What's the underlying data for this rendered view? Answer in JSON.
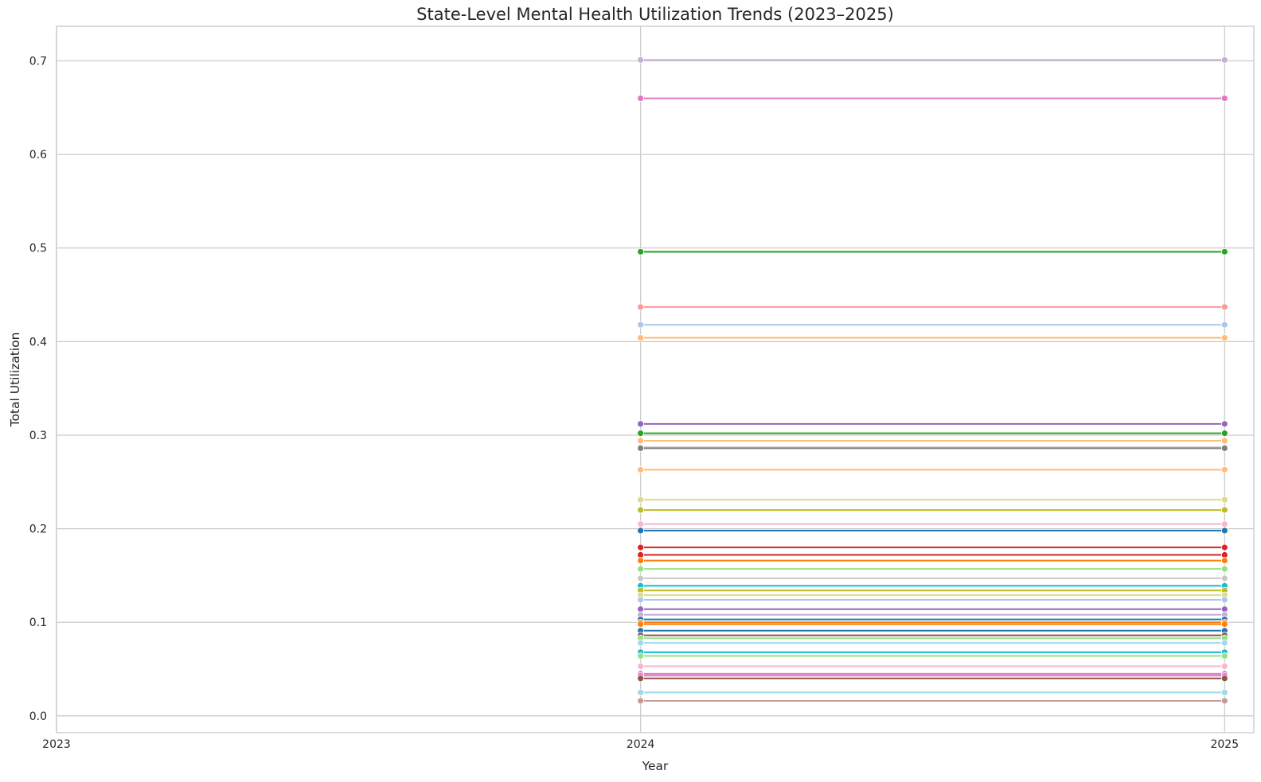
{
  "chart_data": {
    "type": "line",
    "title": "State-Level Mental Health Utilization Trends (2023–2025)",
    "xlabel": "Year",
    "ylabel": "Total Utilization",
    "x_ticks": [
      "2023",
      "2024",
      "2025"
    ],
    "y_ticks": [
      "0.0",
      "0.1",
      "0.2",
      "0.3",
      "0.4",
      "0.5",
      "0.6",
      "0.7"
    ],
    "xlim": [
      2023,
      2025.05
    ],
    "ylim": [
      -0.018,
      0.737
    ],
    "grid": true,
    "legend": "none",
    "x": [
      2024,
      2025
    ],
    "series": [
      {
        "color": "#c5b0d5",
        "values": [
          0.701,
          0.701
        ]
      },
      {
        "color": "#e377c2",
        "values": [
          0.66,
          0.66
        ]
      },
      {
        "color": "#2ca02c",
        "values": [
          0.496,
          0.496
        ]
      },
      {
        "color": "#ff9896",
        "values": [
          0.437,
          0.437
        ]
      },
      {
        "color": "#aec7e8",
        "values": [
          0.418,
          0.418
        ]
      },
      {
        "color": "#ffbb78",
        "values": [
          0.404,
          0.404
        ]
      },
      {
        "color": "#9467bd",
        "values": [
          0.312,
          0.312
        ]
      },
      {
        "color": "#2ca02c",
        "values": [
          0.302,
          0.302
        ]
      },
      {
        "color": "#ffbb78",
        "values": [
          0.294,
          0.294
        ]
      },
      {
        "color": "#c7c7c7",
        "values": [
          0.287,
          0.287
        ]
      },
      {
        "color": "#7f7f7f",
        "values": [
          0.286,
          0.286
        ]
      },
      {
        "color": "#ffbb78",
        "values": [
          0.263,
          0.263
        ]
      },
      {
        "color": "#dbdb8d",
        "values": [
          0.231,
          0.231
        ]
      },
      {
        "color": "#bcbd22",
        "values": [
          0.22,
          0.22
        ]
      },
      {
        "color": "#f7b6d2",
        "values": [
          0.205,
          0.205
        ]
      },
      {
        "color": "#1f77b4",
        "values": [
          0.198,
          0.198
        ]
      },
      {
        "color": "#d62728",
        "values": [
          0.18,
          0.18
        ]
      },
      {
        "color": "#d62728",
        "values": [
          0.172,
          0.172
        ]
      },
      {
        "color": "#ff7f0e",
        "values": [
          0.166,
          0.166
        ]
      },
      {
        "color": "#98df8a",
        "values": [
          0.157,
          0.157
        ]
      },
      {
        "color": "#c7c7c7",
        "values": [
          0.147,
          0.147
        ]
      },
      {
        "color": "#17becf",
        "values": [
          0.139,
          0.139
        ]
      },
      {
        "color": "#bcbd22",
        "values": [
          0.134,
          0.134
        ]
      },
      {
        "color": "#dbdb8d",
        "values": [
          0.129,
          0.129
        ]
      },
      {
        "color": "#aec7e8",
        "values": [
          0.124,
          0.124
        ]
      },
      {
        "color": "#9467bd",
        "values": [
          0.114,
          0.114
        ]
      },
      {
        "color": "#c5b0d5",
        "values": [
          0.108,
          0.108
        ]
      },
      {
        "color": "#1f77b4",
        "values": [
          0.103,
          0.103
        ]
      },
      {
        "color": "#ff7f0e",
        "values": [
          0.1,
          0.1
        ]
      },
      {
        "color": "#ff7f0e",
        "values": [
          0.098,
          0.098
        ]
      },
      {
        "color": "#1f77b4",
        "values": [
          0.091,
          0.091
        ]
      },
      {
        "color": "#8c564b",
        "values": [
          0.086,
          0.086
        ]
      },
      {
        "color": "#98df8a",
        "values": [
          0.083,
          0.083
        ]
      },
      {
        "color": "#9edae5",
        "values": [
          0.078,
          0.078
        ]
      },
      {
        "color": "#17becf",
        "values": [
          0.068,
          0.068
        ]
      },
      {
        "color": "#98df8a",
        "values": [
          0.064,
          0.064
        ]
      },
      {
        "color": "#f7b6d2",
        "values": [
          0.053,
          0.053
        ]
      },
      {
        "color": "#e377c2",
        "values": [
          0.045,
          0.045
        ]
      },
      {
        "color": "#e377c2",
        "values": [
          0.043,
          0.043
        ]
      },
      {
        "color": "#8c564b",
        "values": [
          0.04,
          0.04
        ]
      },
      {
        "color": "#9edae5",
        "values": [
          0.025,
          0.025
        ]
      },
      {
        "color": "#c49c94",
        "values": [
          0.016,
          0.016
        ]
      }
    ]
  }
}
